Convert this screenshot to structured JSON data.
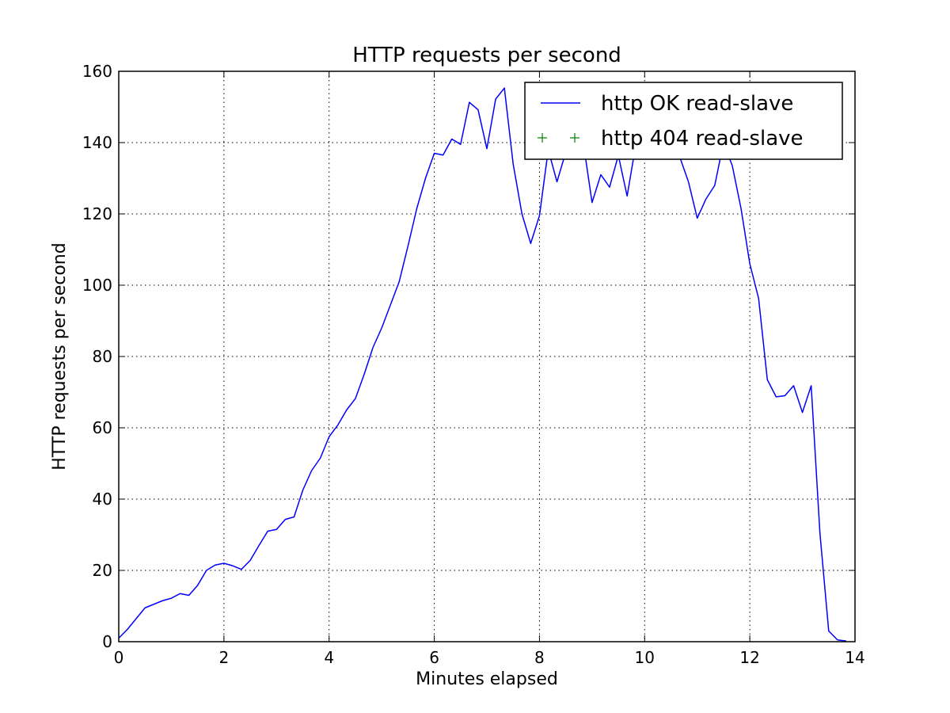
{
  "chart_data": {
    "type": "line",
    "title": "HTTP requests per second",
    "xlabel": "Minutes elapsed",
    "ylabel": "HTTP requests per second",
    "xlim": [
      0,
      14
    ],
    "ylim": [
      0,
      160
    ],
    "xticks": [
      0,
      2,
      4,
      6,
      8,
      10,
      12,
      14
    ],
    "yticks": [
      0,
      20,
      40,
      60,
      80,
      100,
      120,
      140,
      160
    ],
    "grid": true,
    "legend_position": "top-right",
    "series": [
      {
        "name": "http OK read-slave",
        "style": "line",
        "color": "#0000ff",
        "x": [
          0,
          0.167,
          0.333,
          0.5,
          0.667,
          0.833,
          1.0,
          1.167,
          1.333,
          1.5,
          1.667,
          1.833,
          2.0,
          2.167,
          2.333,
          2.5,
          2.667,
          2.833,
          3.0,
          3.167,
          3.333,
          3.5,
          3.667,
          3.833,
          4.0,
          4.167,
          4.333,
          4.5,
          4.667,
          4.833,
          5.0,
          5.167,
          5.333,
          5.5,
          5.667,
          5.833,
          6.0,
          6.167,
          6.333,
          6.5,
          6.667,
          6.833,
          7.0,
          7.167,
          7.333,
          7.5,
          7.667,
          7.833,
          8.0,
          8.167,
          8.333,
          8.5,
          8.667,
          8.833,
          9.0,
          9.167,
          9.333,
          9.5,
          9.667,
          9.833,
          10.0,
          10.167,
          10.333,
          10.5,
          10.667,
          10.833,
          11.0,
          11.167,
          11.333,
          11.5,
          11.667,
          11.833,
          12.0,
          12.167,
          12.333,
          12.5,
          12.667,
          12.833,
          13.0,
          13.167,
          13.333,
          13.5,
          13.667,
          13.833
        ],
        "y": [
          1,
          3.5,
          6.5,
          9.5,
          10.5,
          11.5,
          12.2,
          13.5,
          13,
          15.8,
          20,
          21.5,
          22,
          21.3,
          20.3,
          22.8,
          27,
          31,
          31.5,
          34.3,
          35,
          42.5,
          48,
          51.5,
          57.5,
          60.8,
          65,
          68.2,
          75,
          82.5,
          88,
          94.5,
          101,
          111,
          121.5,
          130,
          137,
          136.5,
          141,
          139.5,
          151.3,
          149.2,
          138.3,
          152.2,
          155.3,
          134,
          120,
          111.7,
          119.5,
          138,
          129,
          137.3,
          139.5,
          140,
          123.2,
          131,
          127.5,
          136.4,
          125,
          139.5,
          141,
          140,
          139.5,
          140,
          136,
          129,
          118.8,
          124.2,
          128,
          140,
          133.5,
          121.5,
          106,
          96.3,
          73.5,
          68.7,
          69,
          71.8,
          64.3,
          71.8,
          30.5,
          3,
          0.5,
          0.2
        ]
      },
      {
        "name": "http 404 read-slave",
        "style": "markers",
        "marker": "+",
        "color": "#008000",
        "x": [],
        "y": []
      }
    ]
  }
}
